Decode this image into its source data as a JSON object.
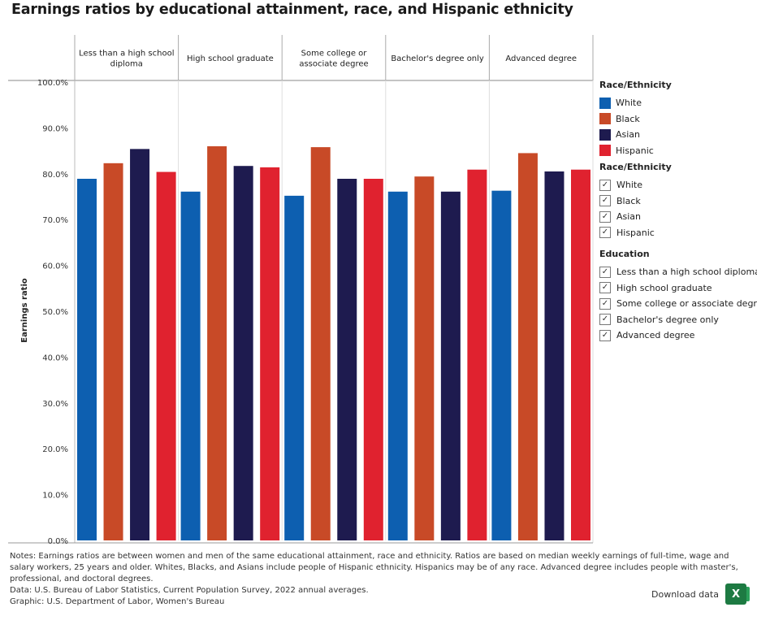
{
  "title": "Earnings ratios by educational attainment, race, and Hispanic ethnicity",
  "chart_data": {
    "type": "bar",
    "title": "Earnings ratios by educational attainment, race, and Hispanic ethnicity",
    "ylabel": "Earnings ratio",
    "ylim": [
      0,
      100
    ],
    "yticks": [
      "100.0%",
      "90.0%",
      "80.0%",
      "70.0%",
      "60.0%",
      "50.0%",
      "40.0%",
      "30.0%",
      "20.0%",
      "10.0%",
      "0.0%"
    ],
    "categories": [
      "Less than a high school diploma",
      "High school graduate",
      "Some college or associate degree",
      "Bachelor's degree only",
      "Advanced degree"
    ],
    "category_lines": [
      [
        "Less than a high school",
        "diploma"
      ],
      [
        "High school graduate"
      ],
      [
        "Some college or",
        "associate degree"
      ],
      [
        "Bachelor's degree only"
      ],
      [
        "Advanced degree"
      ]
    ],
    "series": [
      {
        "name": "White",
        "color": "#0d5fb0",
        "values": [
          78.9,
          76.1,
          75.2,
          76.1,
          76.3
        ]
      },
      {
        "name": "Black",
        "color": "#c84a27",
        "values": [
          82.3,
          86.0,
          85.8,
          79.4,
          84.5
        ]
      },
      {
        "name": "Asian",
        "color": "#1e1b4f",
        "values": [
          85.4,
          81.7,
          78.9,
          76.1,
          80.5
        ]
      },
      {
        "name": "Hispanic",
        "color": "#e0222f",
        "values": [
          80.4,
          81.4,
          78.9,
          80.9,
          80.9
        ]
      }
    ],
    "legend_position": "right",
    "grid": false
  },
  "legend": {
    "title": "Race/Ethnicity"
  },
  "filters": {
    "race_title": "Race/Ethnicity",
    "race_items": [
      "White",
      "Black",
      "Asian",
      "Hispanic"
    ],
    "education_title": "Education",
    "education_items": [
      "Less than a high school diploma",
      "High school graduate",
      "Some college or associate degree",
      "Bachelor's degree only",
      "Advanced degree"
    ],
    "check_glyph": "✓"
  },
  "notes": {
    "line1": "Notes: Earnings ratios are between women and men of the same educational attainment, race and ethnicity. Ratios are based on median weekly earnings of full-time, wage and salary workers, 25 years and older. Whites, Blacks, and Asians include people of Hispanic ethnicity. Hispanics may be of any race. Advanced degree includes people with master's, professional, and doctoral degrees.",
    "line2": "Data: U.S. Bureau of Labor Statistics, Current Population Survey, 2022 annual averages.",
    "line3": "Graphic: U.S. Department of Labor, Women's Bureau"
  },
  "download": {
    "label": "Download data",
    "icon_letter": "X",
    "icon": "excel-icon"
  }
}
